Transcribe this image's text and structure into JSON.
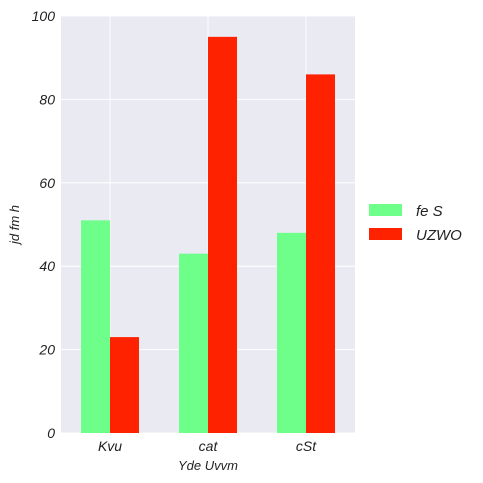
{
  "chart_data": {
    "type": "bar",
    "title": "",
    "categories": [
      "Kvu",
      "cat",
      "cSt"
    ],
    "series": [
      {
        "name": "fe S",
        "values": [
          51,
          43,
          48
        ],
        "color": "#6eff8a"
      },
      {
        "name": "UZWO",
        "values": [
          23,
          95,
          86
        ],
        "color": "#ff2200"
      }
    ],
    "xlabel": "Yde  Uvvm",
    "ylabel": "jd fm  h",
    "ylim": [
      0,
      100
    ],
    "yticks": [
      0,
      20,
      40,
      60,
      80,
      100
    ],
    "grid": true,
    "legend_position": "right",
    "plot_background": "#eaeaf2",
    "grid_color": "#ffffff"
  }
}
